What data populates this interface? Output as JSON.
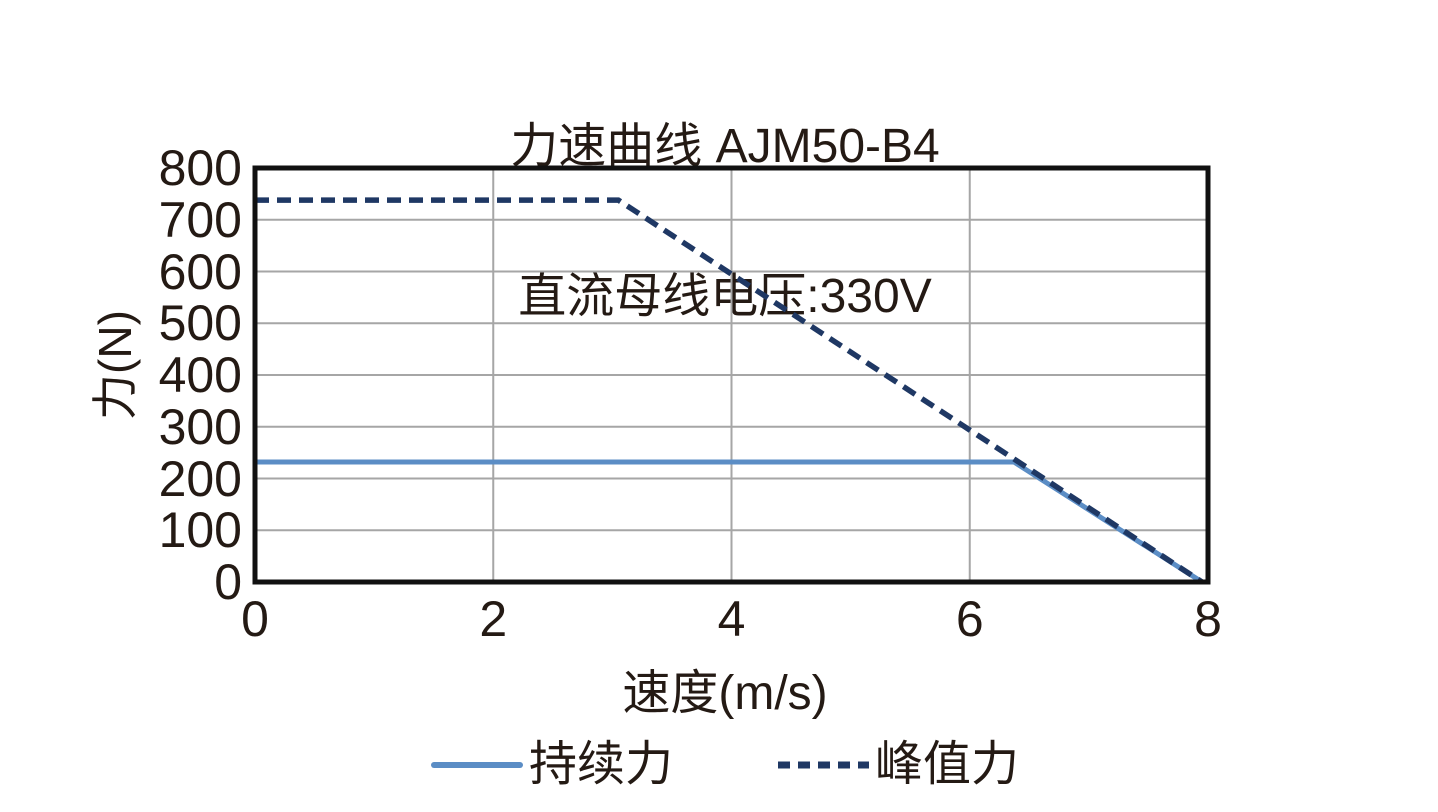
{
  "chart_data": {
    "type": "line",
    "title": "力速曲线 AJM50-B4",
    "subtitle": "直流母线电压:330V",
    "xlabel": "速度(m/s)",
    "ylabel": "力(N)",
    "xlim": [
      0,
      8
    ],
    "ylim": [
      0,
      800
    ],
    "x_ticks": [
      0,
      2,
      4,
      6,
      8
    ],
    "y_ticks": [
      0,
      100,
      200,
      300,
      400,
      500,
      600,
      700,
      800
    ],
    "grid": true,
    "legend_position": "bottom",
    "series": [
      {
        "name": "持续力",
        "style": "solid",
        "color": "#5b8dc5",
        "points": [
          [
            0,
            232
          ],
          [
            6.37,
            232
          ],
          [
            7.95,
            0
          ]
        ]
      },
      {
        "name": "峰值力",
        "style": "dashed",
        "color": "#1f3864",
        "points": [
          [
            0,
            738
          ],
          [
            3.05,
            738
          ],
          [
            7.95,
            0
          ]
        ]
      }
    ]
  },
  "colors": {
    "text": "#241a14",
    "gridline": "#a6a6a6",
    "frame": "#111111",
    "background": "#ffffff"
  }
}
